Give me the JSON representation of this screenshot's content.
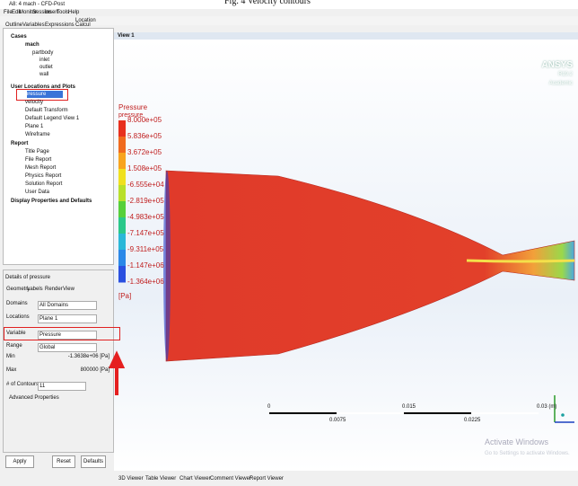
{
  "caption": "Fig. 4 Velocity contours",
  "window": {
    "title": "A8: 4 mach - CFD-Post",
    "menu": [
      "File",
      "Edit",
      "Monitor",
      "Session",
      "Insert",
      "Tools",
      "Help"
    ],
    "location_button": "Location"
  },
  "outline": {
    "tabs": [
      "Outline",
      "Variables",
      "Expressions",
      "Calcul"
    ],
    "tree": [
      "Cases",
      "mach",
      "partbody",
      "inlet",
      "outlet",
      "wall",
      "User Locations and Plots",
      "pressure",
      "velocity",
      "Default Transform",
      "Default Legend View 1",
      "Plane 1",
      "Wireframe",
      "Report",
      "Title Page",
      "File Report",
      "Mesh Report",
      "Physics Report",
      "Solution Report",
      "User Data",
      "Display Properties and Defaults"
    ]
  },
  "details": {
    "title": "Details of pressure",
    "tabs": [
      "Geometry",
      "Labels",
      "Render",
      "View"
    ],
    "fields": [
      {
        "label": "Domains",
        "value": "All Domains"
      },
      {
        "label": "Locations",
        "value": "Plane 1"
      },
      {
        "label": "Variable",
        "value": "Pressure"
      },
      {
        "label": "Range",
        "value": "Global"
      },
      {
        "label": "Min",
        "value": "-1.3638e+06 [Pa]"
      },
      {
        "label": "Max",
        "value": "800000 [Pa]"
      },
      {
        "label": "# of Contours",
        "value": "11"
      }
    ],
    "advanced": "Advanced Properties",
    "buttons": [
      "Apply",
      "Reset",
      "Defaults"
    ]
  },
  "viewer": {
    "tab": "View 1",
    "legend": {
      "title": "Pressure",
      "variable": "pressure",
      "values": [
        "8.000e+05",
        "5.836e+05",
        "3.672e+05",
        "1.508e+05",
        "-6.555e+04",
        "-2.819e+05",
        "-4.983e+05",
        "-7.147e+05",
        "-9.311e+05",
        "-1.147e+06",
        "-1.364e+06"
      ],
      "unit": "[Pa]"
    },
    "brand": [
      "ANSYS",
      "R19.2",
      "Academic"
    ],
    "scale": {
      "major": [
        "0",
        "0.015",
        "0.03 (m)"
      ],
      "minor": [
        "0.0075",
        "0.0225"
      ]
    },
    "watermark": [
      "Activate Windows",
      "Go to Settings to activate Windows."
    ],
    "bottom_tabs": [
      "3D Viewer",
      "Table Viewer",
      "Chart Viewer",
      "Comment Viewer",
      "Report Viewer"
    ]
  }
}
